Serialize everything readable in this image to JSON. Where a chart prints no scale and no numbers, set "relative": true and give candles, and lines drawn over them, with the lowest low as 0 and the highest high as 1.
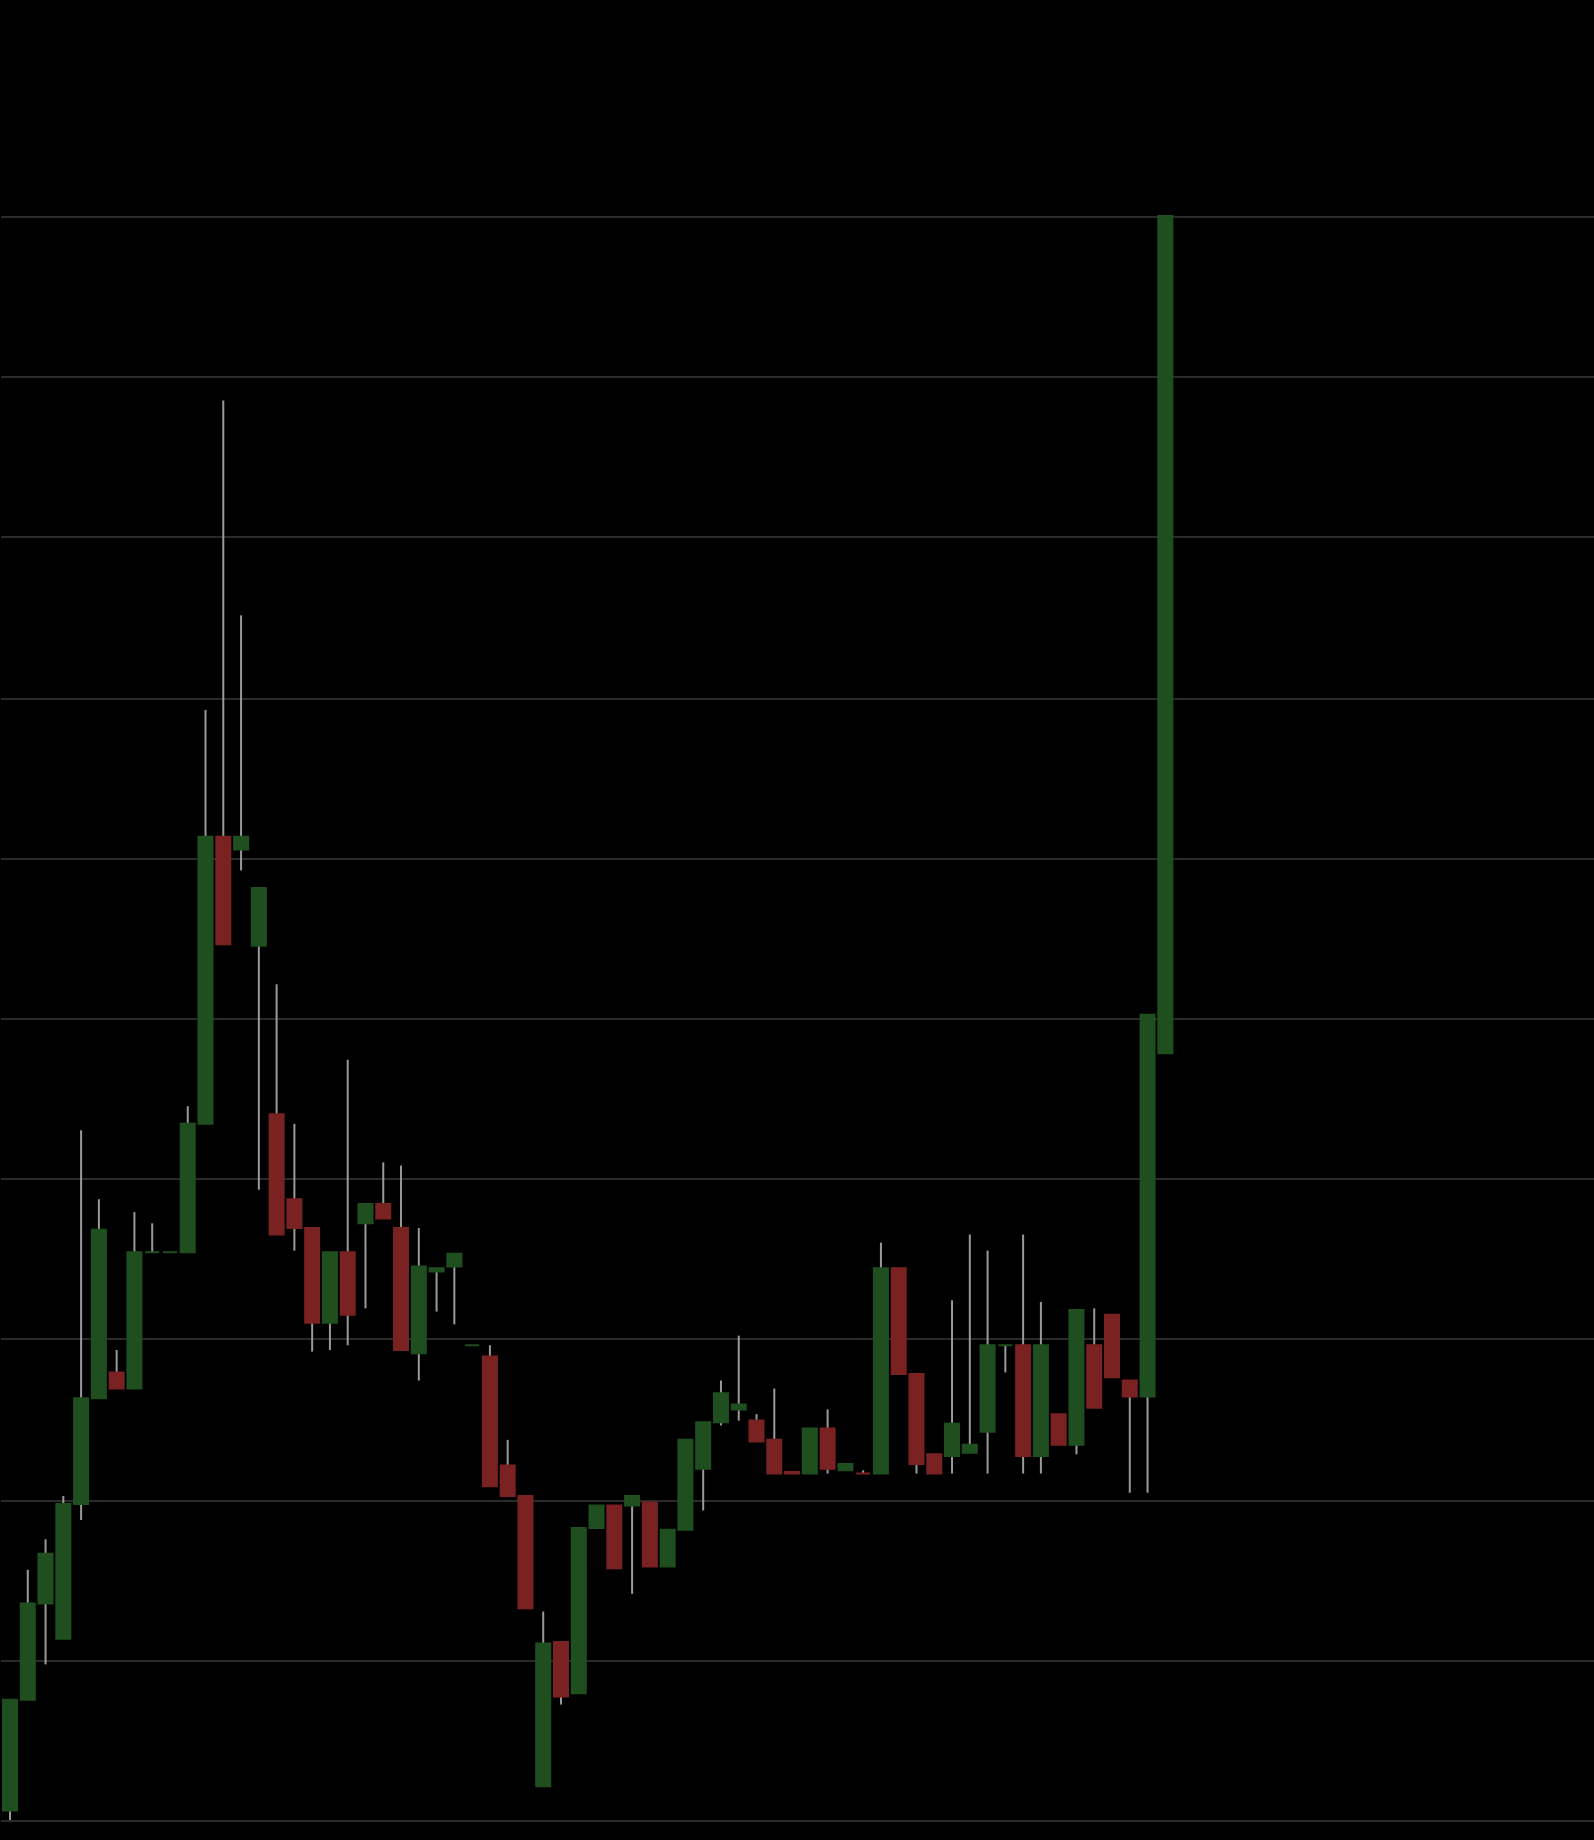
{
  "chart_data": {
    "type": "candlestick",
    "relative": true,
    "grid": "y",
    "categories": [
      null,
      null,
      null,
      null,
      null,
      null,
      null,
      null,
      null,
      null,
      null,
      null,
      null,
      null,
      null,
      null,
      null,
      null,
      null,
      null,
      null,
      null,
      null,
      null,
      null,
      null,
      null,
      null,
      null,
      null,
      null,
      null,
      null,
      null,
      null,
      null,
      null,
      null,
      null,
      null,
      null,
      null,
      null,
      null,
      null,
      null,
      null,
      null,
      null,
      null,
      null,
      null,
      null,
      null,
      null,
      null,
      null,
      null,
      null,
      null,
      null,
      null,
      null,
      null,
      null,
      null
    ],
    "ohlc": [
      [
        0.006,
        0.075,
        0,
        0.075
      ],
      [
        0.075,
        0.156,
        0.075,
        0.135
      ],
      [
        0.135,
        0.175,
        0.097,
        0.166
      ],
      [
        0.113,
        0.202,
        0.113,
        0.197
      ],
      [
        0.197,
        0.43,
        0.187,
        0.263
      ],
      [
        0.263,
        0.387,
        0.263,
        0.368
      ],
      [
        0.279,
        0.293,
        0.269,
        0.269
      ],
      [
        0.269,
        0.379,
        0.269,
        0.354
      ],
      [
        0.354,
        0.372,
        0.354,
        0.354
      ],
      [
        0.354,
        0.354,
        0.354,
        0.354
      ],
      [
        0.354,
        0.445,
        0.354,
        0.434
      ],
      [
        0.434,
        0.692,
        0.434,
        0.613
      ],
      [
        0.613,
        0.885,
        0.546,
        0.546
      ],
      [
        0.605,
        0.751,
        0.592,
        0.613
      ],
      [
        0.545,
        0.581,
        0.393,
        0.581
      ],
      [
        0.44,
        0.521,
        0.365,
        0.365
      ],
      [
        0.387,
        0.434,
        0.355,
        0.369
      ],
      [
        0.369,
        0.369,
        0.292,
        0.31
      ],
      [
        0.31,
        0.354,
        0.293,
        0.354
      ],
      [
        0.354,
        0.474,
        0.296,
        0.315
      ],
      [
        0.372,
        0.384,
        0.319,
        0.384
      ],
      [
        0.384,
        0.41,
        0.375,
        0.375
      ],
      [
        0.369,
        0.408,
        0.293,
        0.293
      ],
      [
        0.291,
        0.369,
        0.274,
        0.345
      ],
      [
        0.342,
        0.344,
        0.317,
        0.344
      ],
      [
        0.345,
        0.353,
        0.309,
        0.353
      ],
      [
        0.296,
        0.296,
        0.296,
        0.296
      ],
      [
        0.289,
        0.296,
        0.208,
        0.208
      ],
      [
        0.221,
        0.237,
        0.202,
        0.202
      ],
      [
        0.202,
        0.202,
        0.132,
        0.132
      ],
      [
        0.021,
        0.13,
        0.021,
        0.11
      ],
      [
        0.111,
        0.111,
        0.072,
        0.077
      ],
      [
        0.079,
        0.182,
        0.079,
        0.182
      ],
      [
        0.182,
        0.196,
        0.182,
        0.196
      ],
      [
        0.196,
        0.196,
        0.157,
        0.157
      ],
      [
        0.196,
        0.202,
        0.141,
        0.202
      ],
      [
        0.198,
        0.198,
        0.158,
        0.158
      ],
      [
        0.158,
        0.181,
        0.158,
        0.181
      ],
      [
        0.181,
        0.237,
        0.181,
        0.237
      ],
      [
        0.219,
        0.248,
        0.193,
        0.248
      ],
      [
        0.248,
        0.274,
        0.246,
        0.266
      ],
      [
        0.256,
        0.302,
        0.249,
        0.259
      ],
      [
        0.249,
        0.253,
        0.236,
        0.236
      ],
      [
        0.237,
        0.269,
        0.216,
        0.216
      ],
      [
        0.217,
        0.217,
        0.216,
        0.216
      ],
      [
        0.216,
        0.244,
        0.216,
        0.244
      ],
      [
        0.244,
        0.256,
        0.216,
        0.219
      ],
      [
        0.218,
        0.222,
        0.218,
        0.222
      ],
      [
        0.216,
        0.218,
        0.216,
        0.216
      ],
      [
        0.216,
        0.36,
        0.216,
        0.344
      ],
      [
        0.344,
        0.344,
        0.278,
        0.278
      ],
      [
        0.278,
        0.278,
        0.216,
        0.222
      ],
      [
        0.228,
        0.228,
        0.216,
        0.216
      ],
      [
        0.227,
        0.324,
        0.216,
        0.247
      ],
      [
        0.229,
        0.365,
        0.229,
        0.234
      ],
      [
        0.242,
        0.355,
        0.216,
        0.296
      ],
      [
        0.296,
        0.296,
        0.279,
        0.296
      ],
      [
        0.296,
        0.365,
        0.216,
        0.227
      ],
      [
        0.227,
        0.323,
        0.216,
        0.296
      ],
      [
        0.253,
        0.253,
        0.234,
        0.234
      ],
      [
        0.234,
        0.318,
        0.228,
        0.318
      ],
      [
        0.296,
        0.319,
        0.257,
        0.257
      ],
      [
        0.315,
        0.315,
        0.276,
        0.276
      ],
      [
        0.274,
        0.274,
        0.204,
        0.264
      ],
      [
        0.264,
        0.502,
        0.204,
        0.502
      ],
      [
        0.478,
        1,
        0.478,
        1
      ]
    ],
    "colors": [
      "#1f4f1f",
      "#1f4f1f",
      "#1f4f1f",
      "#1f4f1f",
      "#1f4f1f",
      "#1f4f1f",
      "#7a2222",
      "#1f4f1f",
      "#1f4f1f",
      "#1f4f1f",
      "#1f4f1f",
      "#1f4f1f",
      "#7a2222",
      "#1f4f1f",
      "#1f4f1f",
      "#7a2222",
      "#7a2222",
      "#7a2222",
      "#1f4f1f",
      "#7a2222",
      "#1f4f1f",
      "#7a2222",
      "#7a2222",
      "#1f4f1f",
      "#1f4f1f",
      "#1f4f1f",
      "#1f4f1f",
      "#7a2222",
      "#7a2222",
      "#7a2222",
      "#1f4f1f",
      "#7a2222",
      "#1f4f1f",
      "#1f4f1f",
      "#7a2222",
      "#1f4f1f",
      "#7a2222",
      "#1f4f1f",
      "#1f4f1f",
      "#1f4f1f",
      "#1f4f1f",
      "#1f4f1f",
      "#7a2222",
      "#7a2222",
      "#7a2222",
      "#1f4f1f",
      "#7a2222",
      "#1f4f1f",
      "#7a2222",
      "#1f4f1f",
      "#7a2222",
      "#7a2222",
      "#7a2222",
      "#1f4f1f",
      "#1f4f1f",
      "#1f4f1f",
      "#1f4f1f",
      "#7a2222",
      "#1f4f1f",
      "#7a2222",
      "#1f4f1f",
      "#7a2222",
      "#7a2222",
      "#7a2222",
      "#1f4f1f",
      "#1f4f1f"
    ]
  }
}
